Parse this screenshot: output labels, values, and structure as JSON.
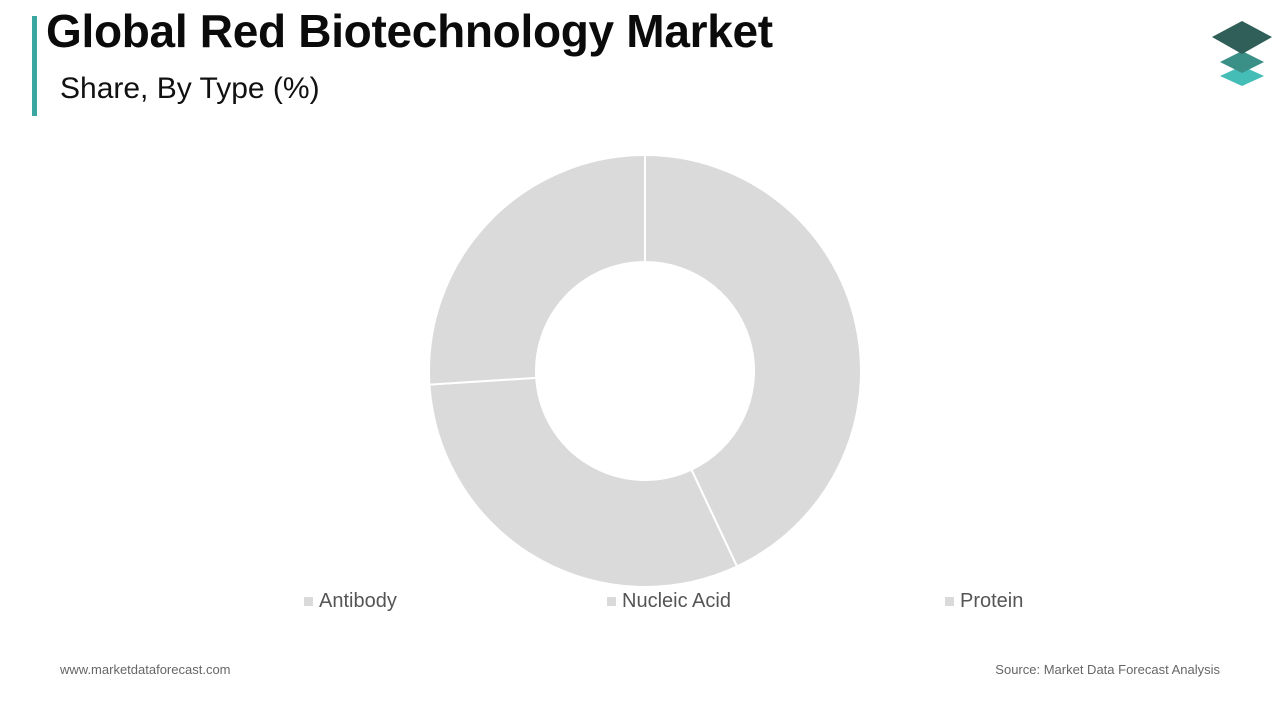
{
  "header": {
    "title": "Global Red Biotechnology Market",
    "subtitle": "Share, By Type (%)",
    "accent_color": "#3aa6a0",
    "logo_icon": "stacked-layers-logo-icon"
  },
  "chart_data": {
    "type": "pie",
    "donut": true,
    "categories": [
      "Antibody",
      "Nucleic Acid",
      "Protein"
    ],
    "values": [
      43,
      31,
      26
    ],
    "slice_color": "#dadada",
    "legend_placement": "bottom"
  },
  "footer": {
    "website": "www.marketdataforecast.com",
    "source": "Source: Market Data Forecast Analysis"
  }
}
